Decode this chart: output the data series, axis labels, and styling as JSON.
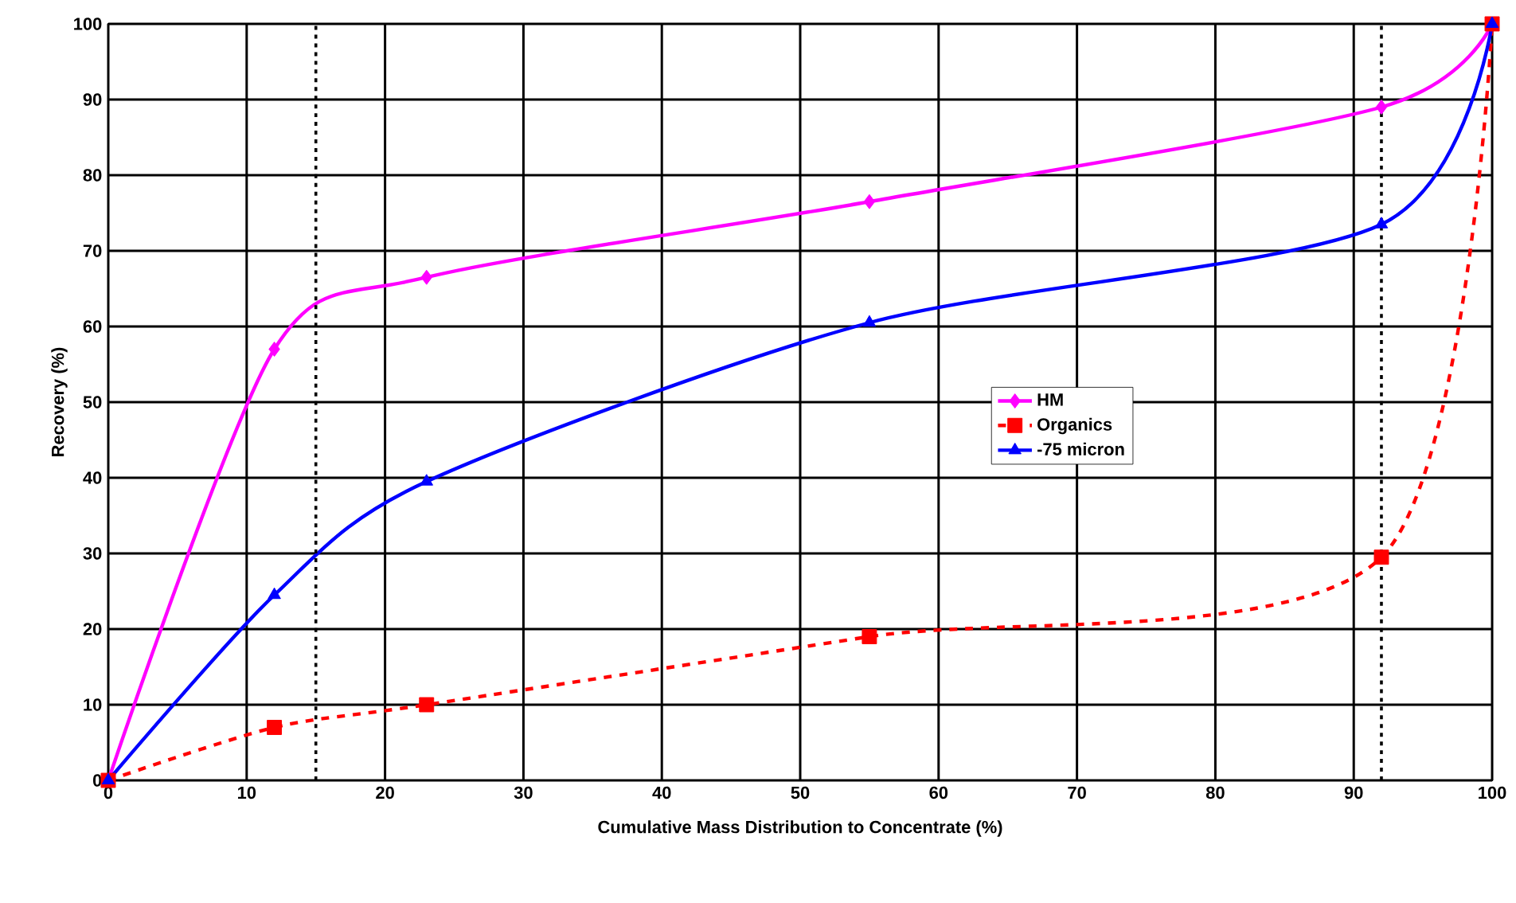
{
  "chart_data": {
    "type": "line",
    "xlabel": "Cumulative Mass Distribution to Concentrate (%)",
    "ylabel": "Recovery (%)",
    "x": [
      0,
      12,
      23,
      55,
      92,
      100
    ],
    "series": [
      {
        "name": "HM",
        "color": "#ff00ff",
        "values": [
          0,
          57,
          66.5,
          76.5,
          89,
          100
        ],
        "marker": "diamond",
        "line_style": "solid"
      },
      {
        "name": "Organics",
        "color": "#ff0000",
        "values": [
          0,
          7,
          10,
          19,
          29.5,
          100
        ],
        "marker": "square",
        "line_style": "dashed"
      },
      {
        "name": "-75 micron",
        "color": "#0000ff",
        "values": [
          0,
          24.5,
          39.5,
          60.5,
          73.5,
          100
        ],
        "marker": "triangle",
        "line_style": "solid"
      }
    ],
    "xlim": [
      0,
      100
    ],
    "ylim": [
      0,
      100
    ],
    "xticks": [
      0,
      10,
      20,
      30,
      40,
      50,
      60,
      70,
      80,
      90,
      100
    ],
    "yticks": [
      0,
      10,
      20,
      30,
      40,
      50,
      60,
      70,
      80,
      90,
      100
    ],
    "grid": true,
    "legend": "right",
    "ref_lines": [
      {
        "axis": "x",
        "value": 15,
        "color": "#000000",
        "line_style": "dotted"
      },
      {
        "axis": "x",
        "value": 92,
        "color": "#000000",
        "line_style": "dotted"
      }
    ]
  }
}
